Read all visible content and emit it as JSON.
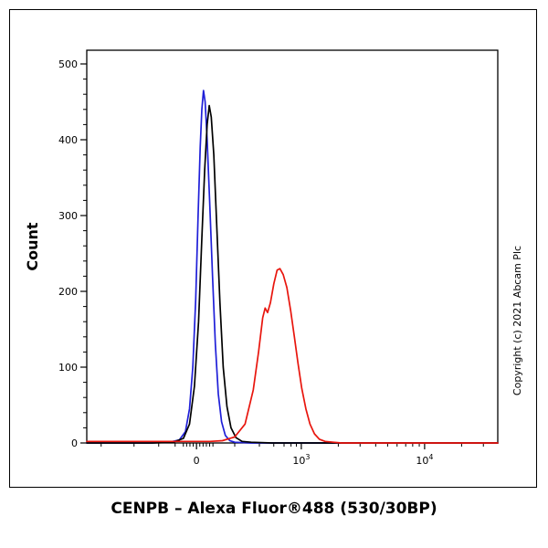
{
  "figure": {
    "title": "CENPB – Alexa Fluor®488 (530/30BP)",
    "y_axis_label": "Count",
    "copyright": "Copyright (c) 2021 Abcam Plc"
  },
  "chart_data": {
    "type": "line",
    "title": "CENPB – Alexa Fluor®488 (530/30BP)",
    "ylabel": "Count",
    "xlabel": "",
    "x_scale": "biexponential",
    "ylim": [
      0,
      500
    ],
    "grid": false,
    "legend": "none",
    "y_ticks_major": [
      0,
      100,
      200,
      300,
      400,
      500
    ],
    "y_tick_minor_step": 20,
    "x_ticks_major": [
      {
        "label": "0",
        "u": 0.267
      },
      {
        "label": "10^3",
        "u": 0.522
      },
      {
        "label": "10^4",
        "u": 0.822
      }
    ],
    "x_ticks_minor_u": [
      0.035,
      0.115,
      0.175,
      0.215,
      0.235,
      0.243,
      0.251,
      0.259,
      0.275,
      0.283,
      0.291,
      0.299,
      0.307,
      0.36,
      0.42,
      0.455,
      0.48,
      0.497,
      0.51,
      0.612,
      0.665,
      0.703,
      0.732,
      0.755,
      0.776,
      0.793,
      0.809,
      0.912,
      0.965
    ],
    "series": [
      {
        "name": "blue-curve",
        "color": "#1f1fd8",
        "peak_count": 465,
        "points": [
          [
            0.0,
            0
          ],
          [
            0.15,
            0
          ],
          [
            0.2,
            1
          ],
          [
            0.225,
            4
          ],
          [
            0.24,
            15
          ],
          [
            0.25,
            45
          ],
          [
            0.258,
            100
          ],
          [
            0.265,
            190
          ],
          [
            0.271,
            300
          ],
          [
            0.276,
            390
          ],
          [
            0.28,
            440
          ],
          [
            0.284,
            465
          ],
          [
            0.288,
            450
          ],
          [
            0.293,
            400
          ],
          [
            0.299,
            320
          ],
          [
            0.306,
            220
          ],
          [
            0.313,
            130
          ],
          [
            0.32,
            65
          ],
          [
            0.328,
            28
          ],
          [
            0.337,
            10
          ],
          [
            0.348,
            3
          ],
          [
            0.36,
            1
          ],
          [
            0.4,
            0
          ],
          [
            1.0,
            0
          ]
        ]
      },
      {
        "name": "black-curve",
        "color": "#000000",
        "peak_count": 445,
        "points": [
          [
            0.0,
            0
          ],
          [
            0.16,
            0
          ],
          [
            0.21,
            1
          ],
          [
            0.235,
            6
          ],
          [
            0.25,
            25
          ],
          [
            0.262,
            75
          ],
          [
            0.272,
            160
          ],
          [
            0.28,
            270
          ],
          [
            0.287,
            360
          ],
          [
            0.293,
            420
          ],
          [
            0.298,
            445
          ],
          [
            0.303,
            430
          ],
          [
            0.309,
            380
          ],
          [
            0.316,
            290
          ],
          [
            0.324,
            185
          ],
          [
            0.332,
            100
          ],
          [
            0.341,
            48
          ],
          [
            0.351,
            20
          ],
          [
            0.363,
            7
          ],
          [
            0.378,
            2
          ],
          [
            0.4,
            1
          ],
          [
            0.45,
            0
          ],
          [
            1.0,
            0
          ]
        ]
      },
      {
        "name": "red-curve",
        "color": "#e8150d",
        "peak_count": 230,
        "points": [
          [
            0.0,
            2
          ],
          [
            0.3,
            2
          ],
          [
            0.33,
            3
          ],
          [
            0.36,
            8
          ],
          [
            0.385,
            25
          ],
          [
            0.405,
            70
          ],
          [
            0.418,
            120
          ],
          [
            0.428,
            165
          ],
          [
            0.434,
            178
          ],
          [
            0.44,
            172
          ],
          [
            0.447,
            185
          ],
          [
            0.455,
            210
          ],
          [
            0.463,
            228
          ],
          [
            0.47,
            230
          ],
          [
            0.478,
            222
          ],
          [
            0.487,
            205
          ],
          [
            0.496,
            175
          ],
          [
            0.505,
            140
          ],
          [
            0.514,
            105
          ],
          [
            0.523,
            72
          ],
          [
            0.533,
            45
          ],
          [
            0.543,
            25
          ],
          [
            0.554,
            12
          ],
          [
            0.566,
            5
          ],
          [
            0.58,
            2
          ],
          [
            0.6,
            1
          ],
          [
            0.62,
            0
          ],
          [
            1.0,
            0
          ]
        ]
      }
    ]
  }
}
